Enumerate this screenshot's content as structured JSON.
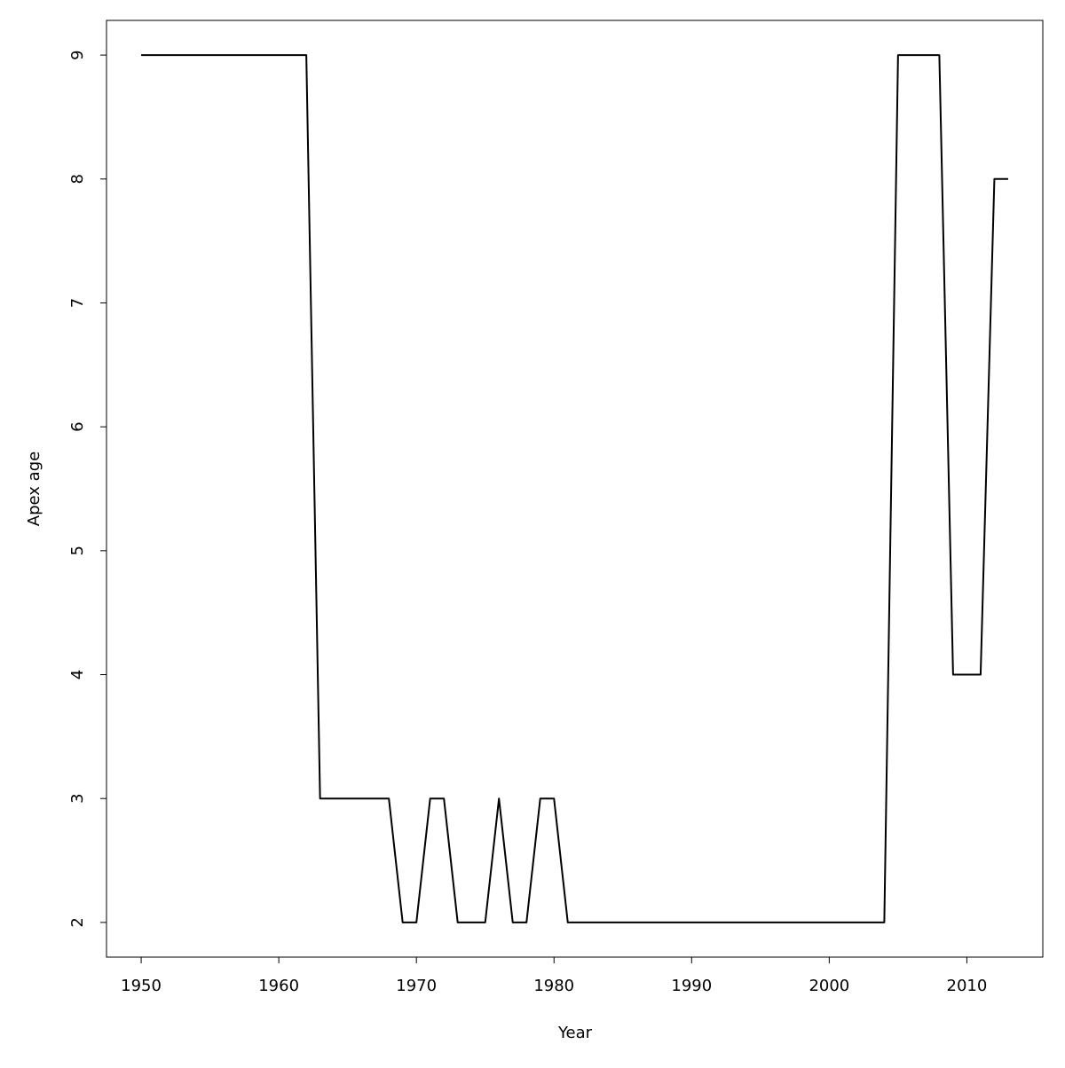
{
  "chart_data": {
    "type": "line",
    "x_label": "Year",
    "y_label": "Apex age",
    "x": [
      1950,
      1951,
      1952,
      1953,
      1954,
      1955,
      1956,
      1957,
      1958,
      1959,
      1960,
      1961,
      1962,
      1963,
      1964,
      1965,
      1966,
      1967,
      1968,
      1969,
      1970,
      1971,
      1972,
      1973,
      1974,
      1975,
      1976,
      1977,
      1978,
      1979,
      1980,
      1981,
      1982,
      1983,
      1984,
      1985,
      1986,
      1987,
      1988,
      1989,
      1990,
      1991,
      1992,
      1993,
      1994,
      1995,
      1996,
      1997,
      1998,
      1999,
      2000,
      2001,
      2002,
      2003,
      2004,
      2005,
      2006,
      2007,
      2008,
      2009,
      2010,
      2011,
      2012,
      2013
    ],
    "values": [
      9,
      9,
      9,
      9,
      9,
      9,
      9,
      9,
      9,
      9,
      9,
      9,
      9,
      3,
      3,
      3,
      3,
      3,
      3,
      2,
      2,
      3,
      3,
      2,
      2,
      2,
      3,
      2,
      2,
      3,
      3,
      2,
      2,
      2,
      2,
      2,
      2,
      2,
      2,
      2,
      2,
      2,
      2,
      2,
      2,
      2,
      2,
      2,
      2,
      2,
      2,
      2,
      2,
      2,
      2,
      9,
      9,
      9,
      9,
      4,
      4,
      4,
      8,
      8
    ],
    "color": "#000000",
    "xlim": [
      1947.48,
      2015.52
    ],
    "xticks": [
      1950,
      1960,
      1970,
      1980,
      1990,
      2000,
      2010
    ],
    "ylim": [
      1.72,
      9.28
    ],
    "yticks": [
      2,
      3,
      4,
      5,
      6,
      7,
      8,
      9
    ],
    "grid": false
  }
}
